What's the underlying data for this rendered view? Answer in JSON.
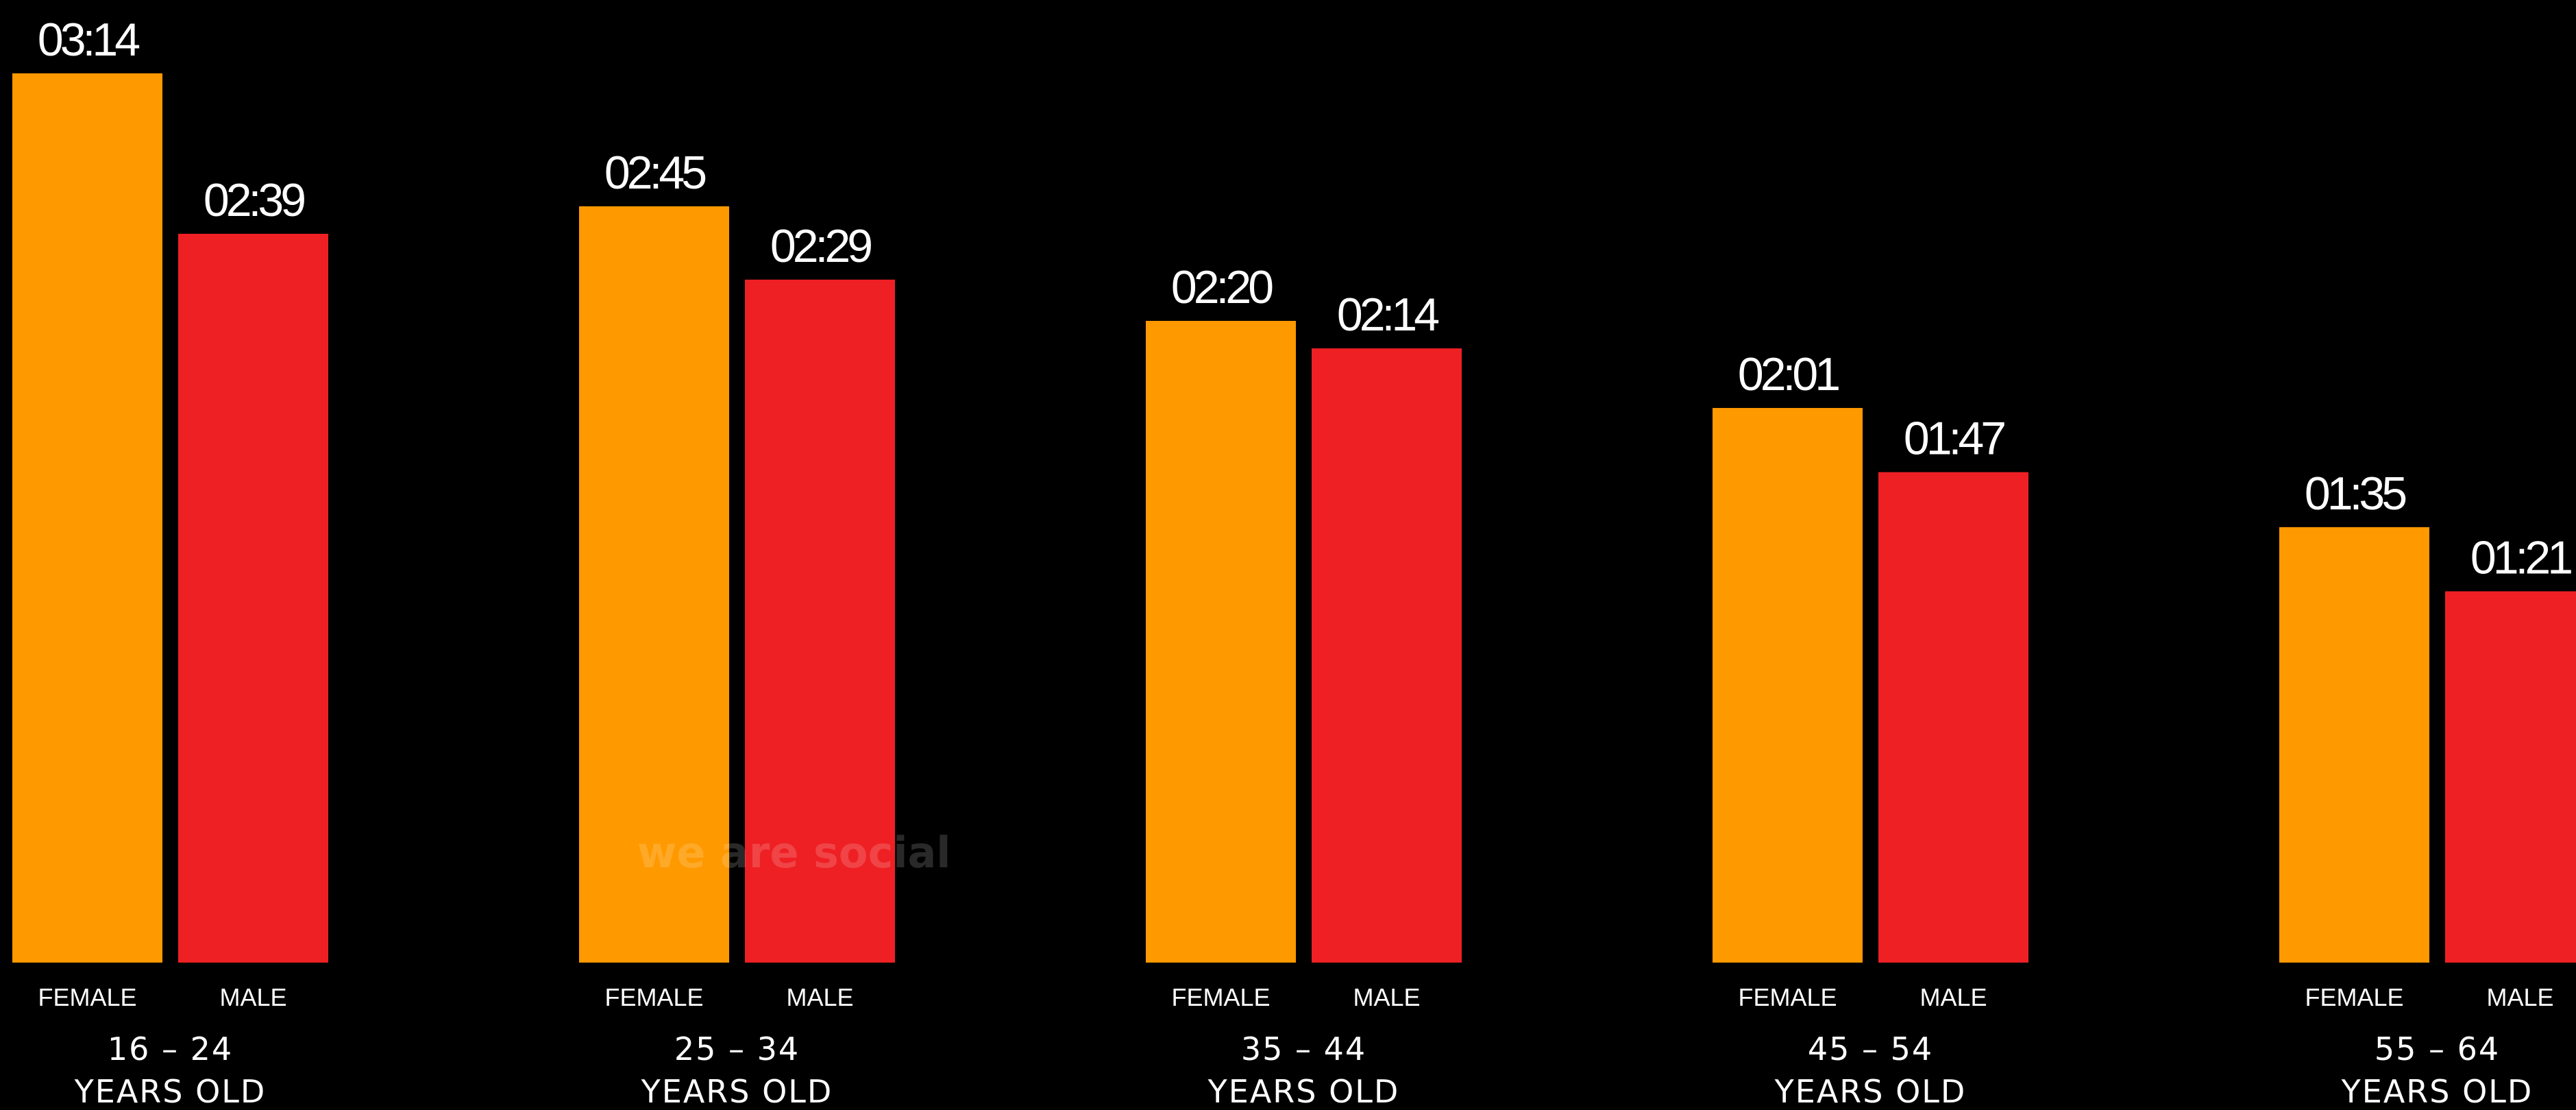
{
  "chart_data": {
    "type": "bar",
    "title": "",
    "xlabel": "",
    "ylabel": "",
    "unit": "hh:mm",
    "ylim": [
      0,
      194
    ],
    "legend": "none",
    "grid": false,
    "categories": [
      {
        "line1": "16 – 24",
        "line2": "YEARS OLD"
      },
      {
        "line1": "25 – 34",
        "line2": "YEARS OLD"
      },
      {
        "line1": "35 – 44",
        "line2": "YEARS OLD"
      },
      {
        "line1": "45 – 54",
        "line2": "YEARS OLD"
      },
      {
        "line1": "55 – 64",
        "line2": "YEARS OLD"
      }
    ],
    "series": [
      {
        "name": "FEMALE",
        "color": "#FF9900",
        "values_minutes": [
          194,
          165,
          140,
          121,
          95
        ],
        "labels": [
          "03:14",
          "02:45",
          "02:20",
          "02:01",
          "01:35"
        ]
      },
      {
        "name": "MALE",
        "color": "#EE2024",
        "values_minutes": [
          159,
          149,
          134,
          107,
          81
        ],
        "labels": [
          "02:39",
          "02:29",
          "02:14",
          "01:47",
          "01:21"
        ]
      }
    ]
  },
  "watermark": {
    "text": "we are social"
  }
}
